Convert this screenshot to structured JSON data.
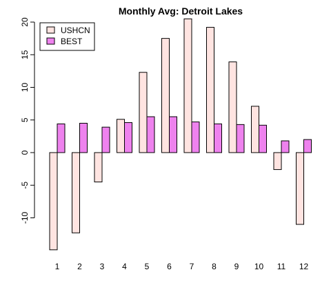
{
  "chart_data": {
    "type": "bar",
    "title": "Monthly Avg: Detroit Lakes",
    "xlabel": "",
    "ylabel": "",
    "categories": [
      "1",
      "2",
      "3",
      "4",
      "5",
      "6",
      "7",
      "8",
      "9",
      "10",
      "11",
      "12"
    ],
    "series": [
      {
        "name": "USHCN",
        "color": "#ffe4e1",
        "values": [
          -14.9,
          -12.3,
          -4.5,
          5.1,
          12.3,
          17.5,
          20.5,
          19.2,
          13.9,
          7.1,
          -2.6,
          -11.0
        ]
      },
      {
        "name": "BEST",
        "color": "#ee82ee",
        "values": [
          4.4,
          4.5,
          3.9,
          4.6,
          5.5,
          5.5,
          4.7,
          4.4,
          4.3,
          4.2,
          1.8,
          2.0
        ]
      }
    ],
    "yticks": [
      "-10",
      "-5",
      "0",
      "5",
      "10",
      "15",
      "20"
    ],
    "ylim": [
      -15,
      20.5
    ],
    "grid": false,
    "legend_position": "top-left"
  }
}
